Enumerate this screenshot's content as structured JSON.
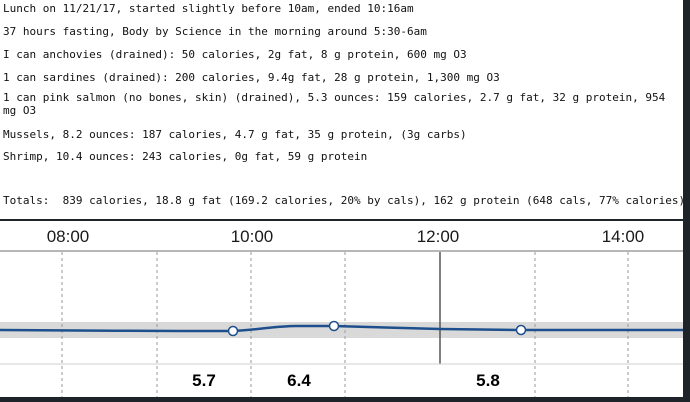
{
  "notes": {
    "lines": [
      "Lunch on 11/21/17, started slightly before 10am, ended 10:16am",
      "37 hours fasting, Body by Science in the morning around 5:30-6am",
      "I can anchovies (drained): 50 calories, 2g fat, 8 g protein, 600 mg O3",
      "1 can sardines (drained): 200 calories, 9.4g fat, 28 g protein, 1,300 mg O3",
      "1 can pink salmon (no bones, skin) (drained), 5.3 ounces: 159 calories, 2.7 g fat, 32 g protein, 954 mg O3",
      "Mussels, 8.2 ounces: 187 calories, 4.7 g fat, 35 g protein, (3g carbs)",
      "Shrimp, 10.4 ounces: 243 calories, 0g fat, 59 g protein",
      "Totals:  839 calories, 18.8 g fat (169.2 calories, 20% by cals), 162 g protein (648 cals, 77% calories)"
    ]
  },
  "cgm": {
    "colors": {
      "trace": "#1d4f8c",
      "target_band": "#d9d9d9",
      "grid": "#9a9a9a",
      "marker_fill": "#ffffff"
    },
    "time_labels": [
      "08:00",
      "10:00",
      "12:00",
      "14:00"
    ],
    "values": [
      "5.7",
      "6.4",
      "5.8"
    ]
  }
}
